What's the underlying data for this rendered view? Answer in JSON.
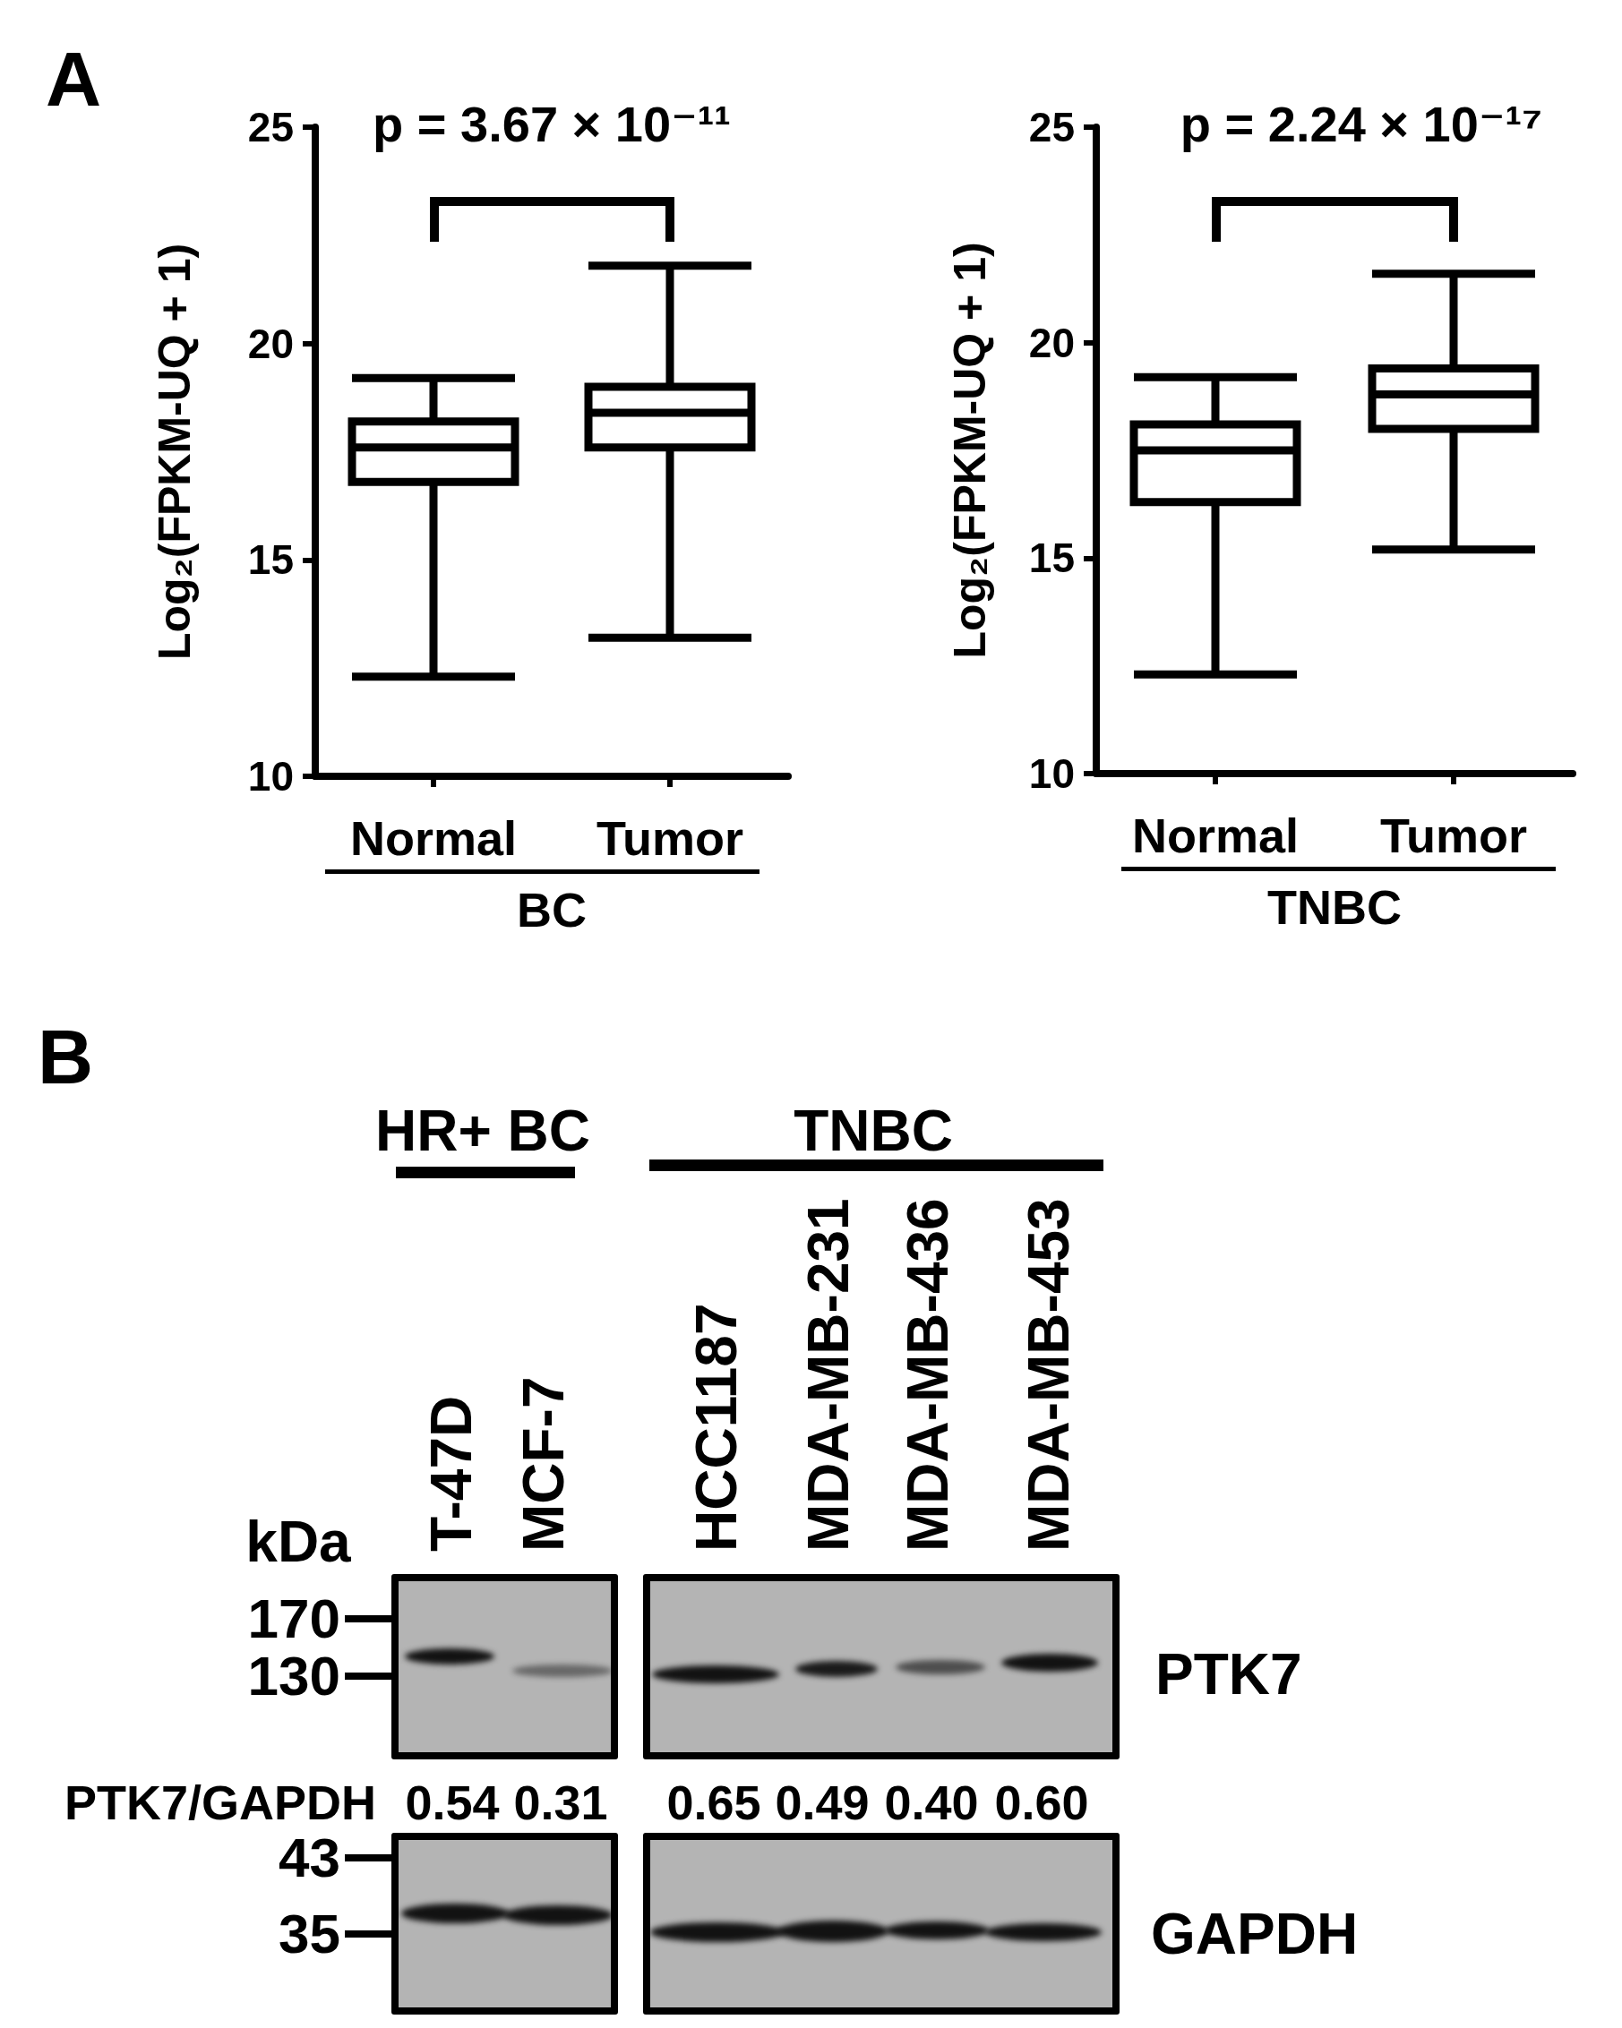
{
  "chart_data": [
    {
      "type": "box",
      "title": "A",
      "categories": [
        "Normal",
        "Tumor"
      ],
      "xlabel": "BC",
      "ylabel": "Log₂(FPKM-UQ + 1)",
      "ylim": [
        10,
        25
      ],
      "yticks": [
        10,
        15,
        20,
        25
      ],
      "series": [
        {
          "color": "#000000",
          "boxes": [
            {
              "low": 12.3,
              "q1": 16.8,
              "median": 17.6,
              "q3": 18.2,
              "high": 19.2
            },
            {
              "low": 13.2,
              "q1": 17.6,
              "median": 18.4,
              "q3": 19.0,
              "high": 21.8
            }
          ]
        }
      ],
      "annotations": [
        "p = 3.67 × 10⁻¹¹"
      ]
    },
    {
      "type": "box",
      "categories": [
        "Normal",
        "Tumor"
      ],
      "xlabel": "TNBC",
      "ylabel": "Log₂(FPKM-UQ + 1)",
      "ylim": [
        10,
        25
      ],
      "yticks": [
        10,
        15,
        20,
        25
      ],
      "series": [
        {
          "color": "#000000",
          "boxes": [
            {
              "low": 12.3,
              "q1": 16.3,
              "median": 17.5,
              "q3": 18.1,
              "high": 19.2
            },
            {
              "low": 15.2,
              "q1": 18.0,
              "median": 18.8,
              "q3": 19.4,
              "high": 21.6
            }
          ]
        }
      ],
      "annotations": [
        "p = 2.24 × 10⁻¹⁷"
      ]
    },
    {
      "type": "other",
      "title": "B",
      "categories": [
        "T-47D",
        "MCF-7",
        "HCC1187",
        "MDA-MB-231",
        "MDA-MB-436",
        "MDA-MB-453"
      ],
      "values": [
        0.54,
        0.31,
        0.65,
        0.49,
        0.4,
        0.6
      ],
      "value_labels": [
        "0.54",
        "0.31",
        "0.65",
        "0.49",
        "0.40",
        "0.60"
      ],
      "ylabel": "PTK7/GAPDH",
      "annotations": [
        "HR+ BC",
        "TNBC",
        "kDa",
        "170",
        "130",
        "43",
        "35",
        "PTK7",
        "GAPDH"
      ]
    }
  ]
}
